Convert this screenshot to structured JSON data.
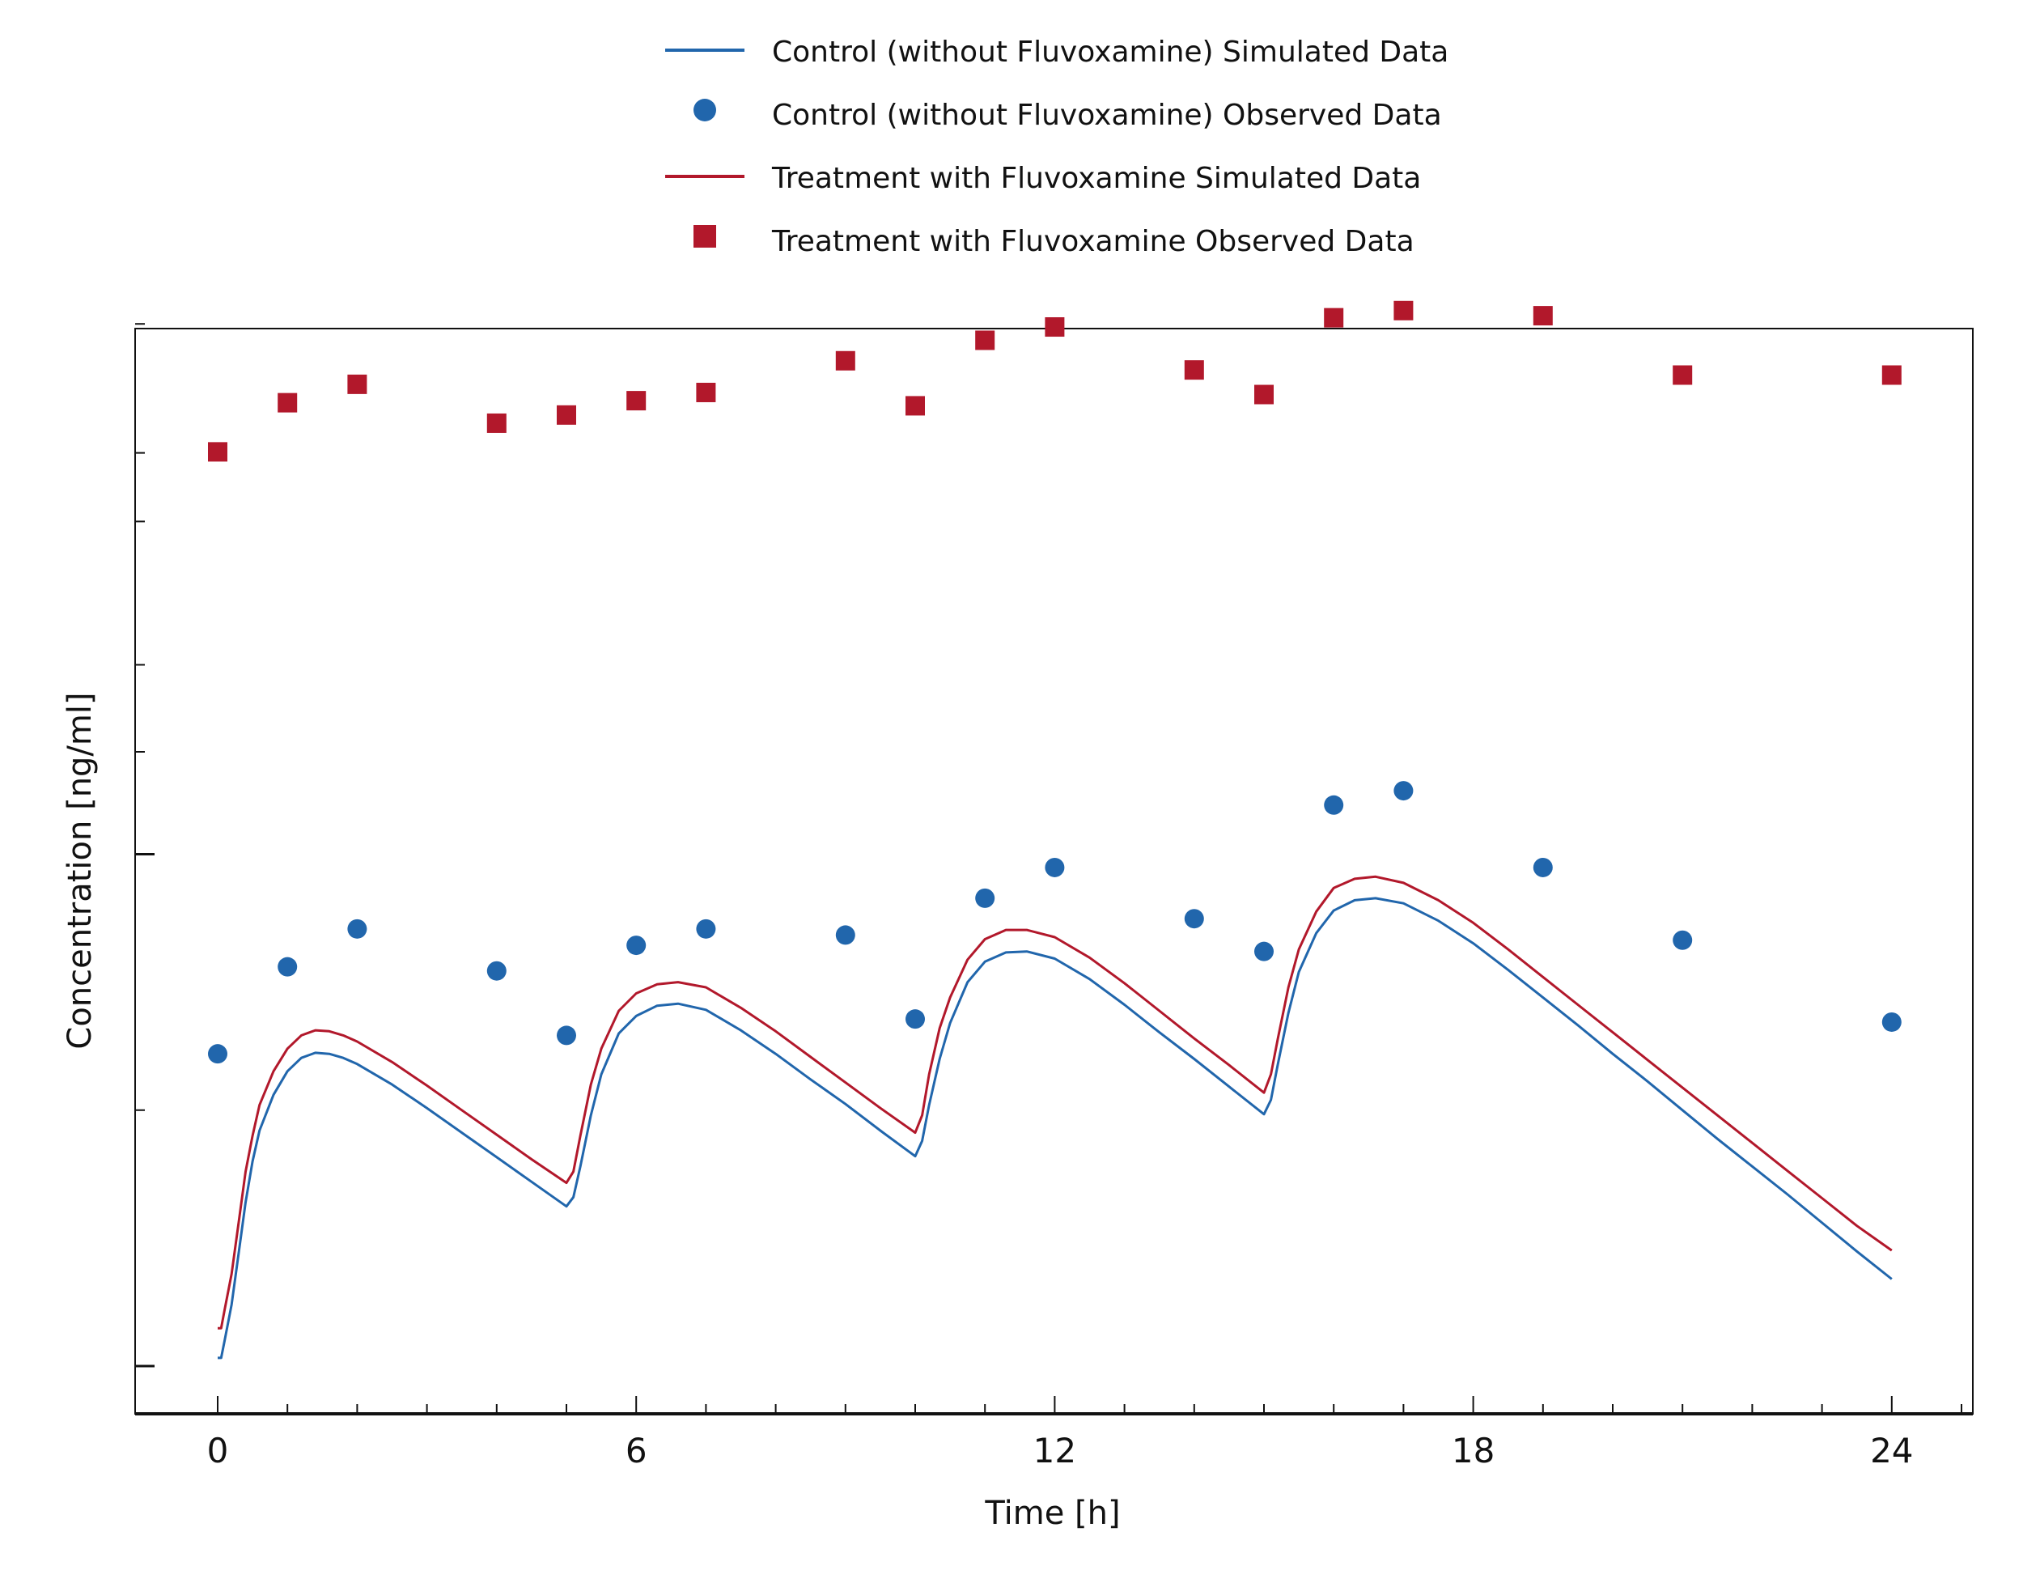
{
  "chart_data": {
    "type": "line",
    "xlabel": "Time [h]",
    "ylabel": "Concentration [ng/ml]",
    "xlim": [
      -1.2,
      25.2
    ],
    "x_ticks": [
      0,
      6,
      12,
      18,
      24
    ],
    "ylim": [
      0,
      100
    ],
    "y_scale": "relative (no tick labels shown)",
    "grid": false,
    "legend_position": "top-center",
    "colors": {
      "control": "#2166ac",
      "treatment": "#b2182b"
    },
    "series": [
      {
        "name": "Control (without Fluvoxamine) Simulated Data",
        "kind": "line",
        "color": "#2166ac",
        "x": [
          0,
          0.05,
          0.1,
          0.2,
          0.3,
          0.4,
          0.5,
          0.6,
          0.8,
          1.0,
          1.2,
          1.4,
          1.6,
          1.8,
          2.0,
          2.5,
          3.0,
          3.5,
          4.0,
          4.5,
          5.0,
          5.1,
          5.2,
          5.35,
          5.5,
          5.75,
          6.0,
          6.3,
          6.6,
          7.0,
          7.5,
          8.0,
          8.5,
          9.0,
          9.5,
          10.0,
          10.1,
          10.2,
          10.35,
          10.5,
          10.75,
          11.0,
          11.3,
          11.6,
          12.0,
          12.5,
          13.0,
          13.5,
          14.0,
          14.5,
          15.0,
          15.1,
          15.2,
          15.35,
          15.5,
          15.75,
          16.0,
          16.3,
          16.6,
          17.0,
          17.5,
          18.0,
          18.5,
          19.0,
          19.5,
          20.0,
          20.5,
          21.0,
          21.5,
          22.0,
          22.5,
          23.0,
          23.5,
          24.0
        ],
        "values": [
          0.8,
          0.8,
          2.5,
          6,
          11,
          16,
          20,
          23,
          26.5,
          28.8,
          30.1,
          30.6,
          30.5,
          30.1,
          29.5,
          27.5,
          25.2,
          22.8,
          20.4,
          18.0,
          15.6,
          16.5,
          19.5,
          24.5,
          28.5,
          32.5,
          34.2,
          35.2,
          35.4,
          34.8,
          32.8,
          30.5,
          28.0,
          25.6,
          23.0,
          20.5,
          22.0,
          25.5,
          30.0,
          33.5,
          37.5,
          39.5,
          40.4,
          40.5,
          39.8,
          37.8,
          35.3,
          32.6,
          30.0,
          27.3,
          24.6,
          26.0,
          29.5,
          34.5,
          38.5,
          42.3,
          44.5,
          45.5,
          45.7,
          45.2,
          43.5,
          41.3,
          38.7,
          36.0,
          33.3,
          30.5,
          27.8,
          25.0,
          22.2,
          19.5,
          16.8,
          14.0,
          11.2,
          8.5
        ]
      },
      {
        "name": "Control (without Fluvoxamine) Observed Data",
        "kind": "scatter",
        "marker": "circle",
        "color": "#2166ac",
        "x": [
          0,
          1,
          2,
          4,
          5,
          6,
          7,
          9,
          10,
          11,
          12,
          14,
          15,
          16,
          17,
          19,
          21,
          24
        ],
        "values": [
          30.5,
          39.0,
          42.7,
          38.6,
          32.3,
          41.1,
          42.7,
          42.1,
          33.9,
          45.7,
          48.7,
          43.7,
          40.5,
          54.8,
          56.2,
          48.7,
          41.6,
          33.6
        ]
      },
      {
        "name": "Treatment with Fluvoxamine Simulated Data",
        "kind": "line",
        "color": "#b2182b",
        "x": [
          0,
          0.05,
          0.1,
          0.2,
          0.3,
          0.4,
          0.5,
          0.6,
          0.8,
          1.0,
          1.2,
          1.4,
          1.6,
          1.8,
          2.0,
          2.5,
          3.0,
          3.5,
          4.0,
          4.5,
          5.0,
          5.1,
          5.2,
          5.35,
          5.5,
          5.75,
          6.0,
          6.3,
          6.6,
          7.0,
          7.5,
          8.0,
          8.5,
          9.0,
          9.5,
          10.0,
          10.1,
          10.2,
          10.35,
          10.5,
          10.75,
          11.0,
          11.3,
          11.6,
          12.0,
          12.5,
          13.0,
          13.5,
          14.0,
          14.5,
          15.0,
          15.1,
          15.2,
          15.35,
          15.5,
          15.75,
          16.0,
          16.3,
          16.6,
          17.0,
          17.5,
          18.0,
          18.5,
          19.0,
          19.5,
          20.0,
          20.5,
          21.0,
          21.5,
          22.0,
          22.5,
          23.0,
          23.5,
          24.0
        ],
        "values": [
          3.7,
          3.7,
          5.5,
          9,
          14,
          19,
          22.5,
          25.5,
          28.8,
          31.0,
          32.3,
          32.8,
          32.7,
          32.3,
          31.7,
          29.7,
          27.4,
          25.0,
          22.6,
          20.2,
          17.9,
          19,
          22.5,
          27.5,
          31.0,
          34.7,
          36.4,
          37.3,
          37.5,
          37.0,
          35.0,
          32.7,
          30.2,
          27.7,
          25.2,
          22.8,
          24.5,
          28.5,
          33.0,
          36.0,
          39.7,
          41.7,
          42.6,
          42.6,
          41.9,
          39.9,
          37.4,
          34.7,
          32.0,
          29.4,
          26.7,
          28.5,
          32.0,
          37.0,
          40.7,
          44.4,
          46.7,
          47.6,
          47.8,
          47.2,
          45.5,
          43.3,
          40.7,
          38.0,
          35.3,
          32.6,
          29.9,
          27.2,
          24.5,
          21.8,
          19.1,
          16.4,
          13.7,
          11.3
        ]
      },
      {
        "name": "Treatment with Fluvoxamine Observed Data",
        "kind": "scatter",
        "marker": "square",
        "color": "#b2182b",
        "x": [
          0,
          1,
          2,
          4,
          5,
          6,
          7,
          9,
          10,
          11,
          12,
          14,
          15,
          16,
          17,
          19,
          21,
          24
        ],
        "values": [
          89.3,
          94.1,
          95.9,
          92.1,
          92.9,
          94.3,
          95.1,
          98.2,
          93.8,
          100.2,
          101.5,
          97.3,
          94.9,
          102.4,
          103.1,
          102.6,
          96.8,
          96.8
        ]
      }
    ]
  }
}
